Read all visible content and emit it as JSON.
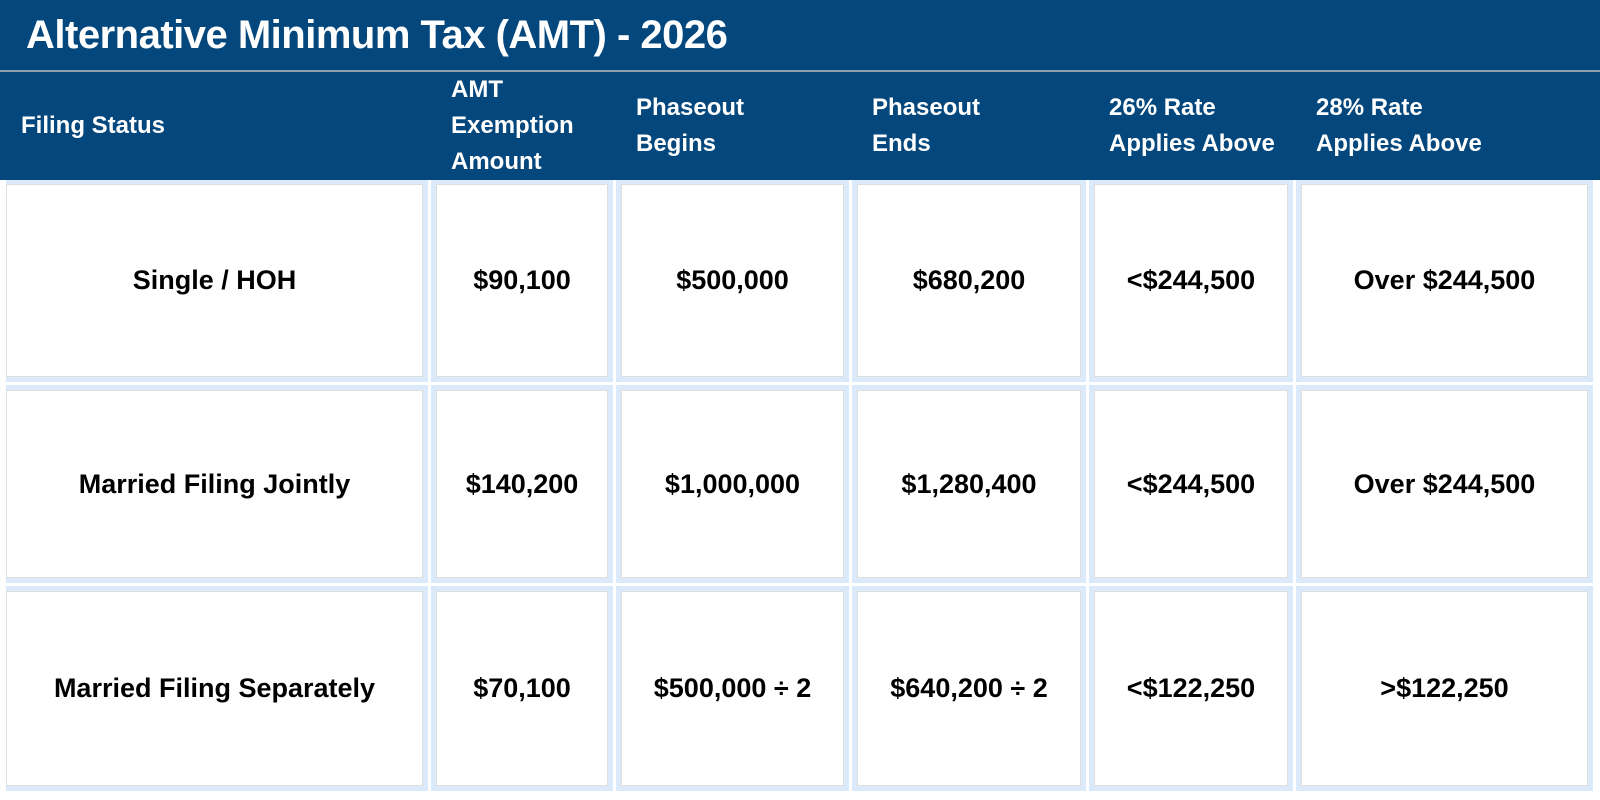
{
  "title": "Alternative Minimum Tax (AMT) - 2026",
  "header": {
    "columns": [
      "Filing Status",
      "AMT\nExemption\nAmount",
      "Phaseout\nBegins",
      "Phaseout\nEnds",
      "26% Rate\nApplies Above",
      "28% Rate\nApplies Above"
    ]
  },
  "chart_data": {
    "type": "table",
    "title": "Alternative Minimum Tax (AMT) - 2026",
    "columns": [
      "Filing Status",
      "AMT Exemption Amount",
      "Phaseout Begins",
      "Phaseout Ends",
      "26% Rate Applies Above",
      "28% Rate Applies Above"
    ],
    "rows": [
      [
        "Single / HOH",
        "$90,100",
        "$500,000",
        "$680,200",
        "<$244,500",
        "Over $244,500"
      ],
      [
        "Married Filing Jointly",
        "$140,200",
        "$1,000,000",
        "$1,280,400",
        "<$244,500",
        "Over $244,500"
      ],
      [
        "Married Filing Separately",
        "$70,100",
        "$500,000 ÷ 2",
        "$640,200 ÷ 2",
        "<$122,250",
        ">$122,250"
      ]
    ]
  },
  "colors": {
    "header_bg": "#04477D",
    "header_text": "#FFFFFF",
    "divider": "#8FA0AE",
    "cell_bg": "#FFFFFF",
    "cell_outline": "#DBEAFB",
    "cell_border": "#DEDEDE",
    "body_text": "#000000"
  }
}
